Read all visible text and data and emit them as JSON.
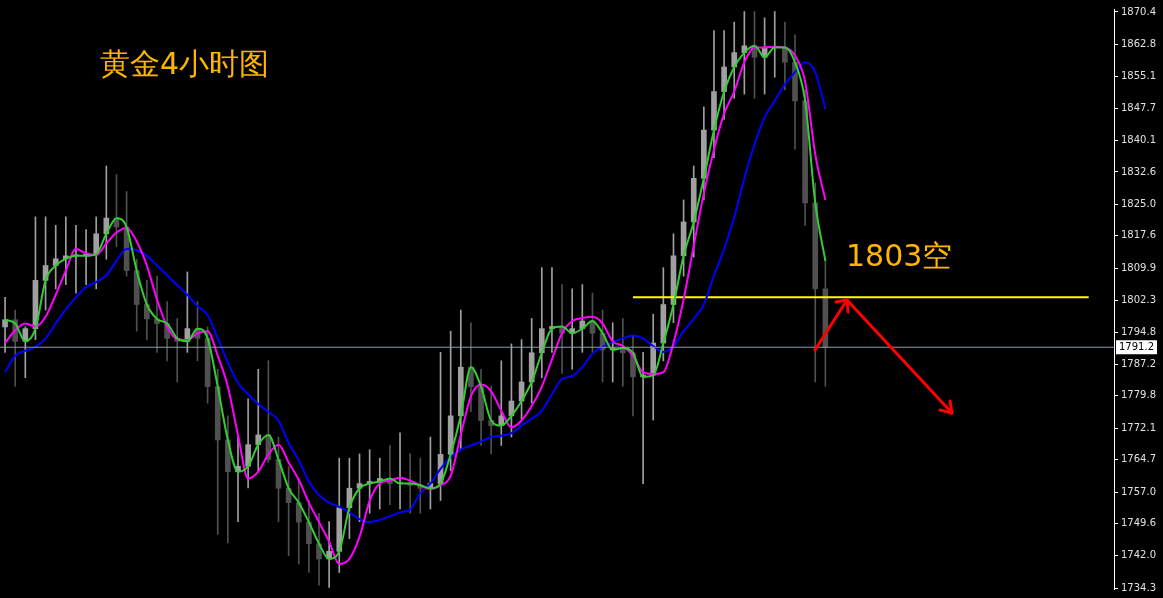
{
  "chart_data": {
    "type": "candlestick",
    "title": "黄金4小时图",
    "colors": [
      "#a0a0a0",
      "#505050",
      "#a0a0a0",
      "#a0a0a0",
      "#a0a0a0",
      "#a0a0a0",
      "#a0a0a0",
      "#a0a0a0",
      "#a0a0a0",
      "#a0a0a0",
      "#a0a0a0",
      "#505050",
      "#505050",
      "#505050",
      "#505050",
      "#505050",
      "#505050",
      "#505050",
      "#a0a0a0",
      "#505050",
      "#505050",
      "#505050",
      "#505050",
      "#a0a0a0",
      "#a0a0a0",
      "#a0a0a0",
      "#505050",
      "#505050",
      "#505050",
      "#505050",
      "#505050",
      "#505050",
      "#a0a0a0",
      "#a0a0a0",
      "#a0a0a0",
      "#a0a0a0",
      "#a0a0a0",
      "#a0a0a0",
      "#505050",
      "#a0a0a0",
      "#505050",
      "#505050",
      "#a0a0a0",
      "#a0a0a0",
      "#a0a0a0",
      "#a0a0a0",
      "#505050",
      "#505050",
      "#505050",
      "#a0a0a0",
      "#a0a0a0",
      "#a0a0a0",
      "#a0a0a0",
      "#a0a0a0",
      "#a0a0a0",
      "#505050",
      "#a0a0a0",
      "#a0a0a0",
      "#505050",
      "#505050",
      "#a0a0a0",
      "#505050",
      "#505050",
      "#a0a0a0",
      "#a0a0a0",
      "#a0a0a0",
      "#a0a0a0",
      "#a0a0a0",
      "#a0a0a0",
      "#a0a0a0",
      "#a0a0a0",
      "#a0a0a0",
      "#a0a0a0",
      "#a0a0a0",
      "#505050",
      "#a0a0a0",
      "#a0a0a0",
      "#505050",
      "#505050",
      "#505050",
      "#505050",
      "#505050",
      null,
      null,
      null,
      null,
      null,
      null,
      null,
      null,
      null,
      null,
      null,
      null,
      null,
      null,
      null,
      null,
      null,
      null,
      null,
      null,
      null,
      null,
      null,
      null,
      null,
      null,
      null,
      null
    ],
    "categories": [
      null,
      null,
      null,
      null,
      null,
      null,
      null,
      null,
      null,
      null,
      null,
      null,
      null,
      null,
      null,
      null,
      null,
      null,
      null,
      null,
      null,
      null,
      null,
      null,
      null,
      null,
      null,
      null,
      null,
      null,
      null,
      null,
      null,
      null,
      null,
      null,
      null,
      null,
      null,
      null,
      null,
      null,
      null,
      null,
      null,
      null,
      null,
      null,
      null,
      null,
      null,
      null,
      null,
      null,
      null,
      null,
      null,
      null,
      null,
      null,
      null,
      null,
      null,
      null,
      null,
      null,
      null,
      null,
      null,
      null,
      null,
      null,
      null,
      null,
      null,
      null,
      null,
      null,
      null,
      null,
      null,
      null,
      null,
      null,
      null,
      null,
      null,
      null,
      null,
      null,
      null,
      null,
      null,
      null,
      null,
      null,
      null,
      null,
      null,
      null,
      null,
      null,
      null,
      null,
      null,
      null,
      null,
      null,
      null,
      null
    ],
    "ohlc": [
      [
        1796,
        1803,
        1790,
        1797.7
      ],
      [
        1797.7,
        1800,
        1782,
        1792.6
      ],
      [
        1792.6,
        1796,
        1784,
        1795.6
      ],
      [
        1795.6,
        1822,
        1793,
        1807
      ],
      [
        1807,
        1822,
        1800,
        1810.5
      ],
      [
        1810.5,
        1820,
        1805,
        1812.1
      ],
      [
        1812.1,
        1822,
        1806,
        1812.8
      ],
      [
        1812.8,
        1820,
        1804,
        1812.8
      ],
      [
        1812.8,
        1819,
        1806,
        1813.2
      ],
      [
        1813.2,
        1822,
        1805,
        1818
      ],
      [
        1818,
        1834,
        1812,
        1821.7
      ],
      [
        1821.7,
        1832,
        1815,
        1819.6
      ],
      [
        1819.6,
        1828,
        1808,
        1809.3
      ],
      [
        1809.3,
        1812,
        1795,
        1801.3
      ],
      [
        1801.3,
        1807,
        1793,
        1797.9
      ],
      [
        1797.9,
        1808,
        1790,
        1796.8
      ],
      [
        1796.8,
        1802,
        1788,
        1793.3
      ],
      [
        1793.3,
        1798,
        1783,
        1792.6
      ],
      [
        1792.6,
        1809,
        1790,
        1795.6
      ],
      [
        1795.6,
        1802,
        1788,
        1793.3
      ],
      [
        1793.3,
        1796,
        1778,
        1781.9
      ],
      [
        1781.9,
        1786,
        1747,
        1769.3
      ],
      [
        1769.3,
        1775,
        1745,
        1761.8
      ],
      [
        1761.8,
        1770,
        1750,
        1763.1
      ],
      [
        1763.1,
        1779,
        1758,
        1768.2
      ],
      [
        1768.2,
        1786,
        1762,
        1770.5
      ],
      [
        1770.5,
        1788,
        1764,
        1764.7
      ],
      [
        1764.7,
        1770,
        1750,
        1757.9
      ],
      [
        1757.9,
        1763,
        1742,
        1754.5
      ],
      [
        1754.5,
        1760,
        1740,
        1749.9
      ],
      [
        1749.9,
        1755,
        1738,
        1744.8
      ],
      [
        1744.8,
        1752,
        1735,
        1741.2
      ],
      [
        1741.2,
        1750,
        1734.5,
        1743
      ],
      [
        1743,
        1765,
        1738,
        1753.3
      ],
      [
        1753.3,
        1765,
        1746,
        1757.9
      ],
      [
        1757.9,
        1766,
        1750,
        1759
      ],
      [
        1759,
        1767,
        1752,
        1759.5
      ],
      [
        1759.5,
        1765,
        1753,
        1760.2
      ],
      [
        1760.2,
        1768,
        1754,
        1759
      ],
      [
        1759,
        1771,
        1753,
        1759
      ],
      [
        1759,
        1766,
        1752,
        1758.6
      ],
      [
        1758.6,
        1765,
        1752,
        1757.9
      ],
      [
        1757.9,
        1770,
        1753,
        1759
      ],
      [
        1759,
        1790,
        1755,
        1765.9
      ],
      [
        1765.9,
        1795,
        1762,
        1775
      ],
      [
        1775,
        1800,
        1767,
        1786.5
      ],
      [
        1786.5,
        1797,
        1776,
        1781.9
      ],
      [
        1781.9,
        1786,
        1768,
        1773.9
      ],
      [
        1773.9,
        1782,
        1766,
        1772.7
      ],
      [
        1772.7,
        1788,
        1768,
        1775
      ],
      [
        1775,
        1792,
        1770,
        1778.5
      ],
      [
        1778.5,
        1793,
        1774,
        1783
      ],
      [
        1783,
        1798,
        1778,
        1789.9
      ],
      [
        1789.9,
        1810,
        1784,
        1795.6
      ],
      [
        1795.6,
        1810,
        1790,
        1796.1
      ],
      [
        1796.1,
        1806,
        1785,
        1794.5
      ],
      [
        1794.5,
        1805,
        1786,
        1795.6
      ],
      [
        1795.6,
        1806,
        1790,
        1797.4
      ],
      [
        1797.4,
        1804,
        1790,
        1794.5
      ],
      [
        1794.5,
        1800,
        1783,
        1790.6
      ],
      [
        1790.6,
        1797,
        1783,
        1791
      ],
      [
        1791,
        1798,
        1782,
        1789.9
      ],
      [
        1789.9,
        1794,
        1775,
        1784.2
      ],
      [
        1784.2,
        1790,
        1759,
        1784.6
      ],
      [
        1784.6,
        1799,
        1774,
        1792.2
      ],
      [
        1792.2,
        1810,
        1788,
        1801.3
      ],
      [
        1801.3,
        1818,
        1797,
        1812.8
      ],
      [
        1812.8,
        1826,
        1808,
        1820.8
      ],
      [
        1820.8,
        1834,
        1812.5,
        1831.1
      ],
      [
        1831.1,
        1848,
        1826,
        1842.5
      ],
      [
        1842.5,
        1866,
        1836,
        1851.6
      ],
      [
        1851.6,
        1866,
        1845,
        1857.4
      ],
      [
        1857.4,
        1868,
        1850,
        1860.8
      ],
      [
        1860.8,
        1870.5,
        1851,
        1862.4
      ],
      [
        1862.4,
        1870.5,
        1850,
        1859.7
      ],
      [
        1859.7,
        1869,
        1851,
        1862
      ],
      [
        1862,
        1870.5,
        1855,
        1862
      ],
      [
        1862,
        1868,
        1852,
        1858.5
      ],
      [
        1858.5,
        1865,
        1838,
        1849.4
      ],
      [
        1849.4,
        1852,
        1820,
        1825.3
      ],
      [
        1825.3,
        1830,
        1783,
        1805
      ],
      [
        1805,
        1812,
        1782,
        1791.2
      ],
      null,
      null,
      null,
      null,
      null,
      null,
      null,
      null,
      null,
      null,
      null,
      null,
      null,
      null,
      null,
      null,
      null,
      null,
      null,
      null,
      null,
      null,
      null,
      null,
      null,
      null,
      null,
      null
    ],
    "series": [
      {
        "type": "line",
        "color": "#33cc33",
        "values": [
          1797.7,
          1796.8,
          1792.6,
          1795.6,
          1807.0,
          1810.5,
          1812.1,
          1812.8,
          1812.8,
          1813.2,
          1818.0,
          1821.7,
          1819.6,
          1809.3,
          1801.3,
          1797.9,
          1796.8,
          1793.3,
          1792.6,
          1795.6,
          1793.3,
          1781.9,
          1769.3,
          1761.8,
          1763.1,
          1768.2,
          1770.5,
          1764.7,
          1757.9,
          1754.5,
          1749.9,
          1744.8,
          1741.2,
          1743.0,
          1753.3,
          1757.9,
          1759.0,
          1759.5,
          1760.2,
          1759.0,
          1759.0,
          1758.6,
          1757.9,
          1759.0,
          1765.9,
          1775.0,
          1786.5,
          1781.9,
          1773.9,
          1772.7,
          1775.0,
          1778.5,
          1783.0,
          1789.9,
          1795.6,
          1796.1,
          1794.5,
          1795.6,
          1797.4,
          1794.5,
          1790.6,
          1791.0,
          1789.9,
          1784.2,
          1784.6,
          1792.2,
          1801.3,
          1812.8,
          1820.8,
          1831.1,
          1842.5,
          1851.6,
          1857.4,
          1860.8,
          1862.4,
          1859.7,
          1862.0,
          1862.0,
          1858.5,
          1849.4,
          1825.3,
          1811.6,
          null,
          null,
          null,
          null,
          null,
          null,
          null,
          null,
          null,
          null,
          null,
          null,
          null,
          null,
          null,
          null,
          null,
          null,
          null,
          null,
          null,
          null,
          null,
          null,
          null,
          null,
          null,
          null
        ]
      },
      {
        "type": "line",
        "color": "#ff00ff",
        "values": [
          1792.2,
          1795.2,
          1796.8,
          1796.1,
          1798.4,
          1803.6,
          1809.3,
          1814.4,
          1813.4,
          1813.0,
          1815.7,
          1818.3,
          1819.4,
          1816.2,
          1810.5,
          1802.5,
          1796.1,
          1793.1,
          1792.9,
          1794.5,
          1795.0,
          1789.2,
          1781.9,
          1770.5,
          1760.2,
          1761.8,
          1765.9,
          1768.2,
          1764.0,
          1759.9,
          1754.5,
          1749.9,
          1745.3,
          1740.0,
          1741.2,
          1746.4,
          1754.9,
          1759.0,
          1759.7,
          1760.4,
          1759.7,
          1758.6,
          1757.7,
          1758.6,
          1760.8,
          1770.5,
          1779.6,
          1782.4,
          1780.8,
          1776.2,
          1772.3,
          1773.9,
          1777.3,
          1781.9,
          1788.3,
          1794.5,
          1797.4,
          1798.1,
          1798.4,
          1796.8,
          1792.6,
          1791.5,
          1789.2,
          1785.3,
          1784.9,
          1785.3,
          1792.2,
          1802.5,
          1815.1,
          1827.6,
          1837.9,
          1846.4,
          1851.6,
          1858.5,
          1862.0,
          1862.0,
          1862.2,
          1862.0,
          1860.1,
          1853.9,
          1836.8,
          1826.0,
          null,
          null,
          null,
          null,
          null,
          null,
          null,
          null,
          null,
          null,
          null,
          null,
          null,
          null,
          null,
          null,
          null,
          null,
          null,
          null,
          null,
          null,
          null,
          null,
          null,
          null,
          null,
          null
        ]
      },
      {
        "type": "line",
        "color": "#0000ff",
        "values": [
          1785.3,
          1789.2,
          1790.4,
          1791.3,
          1793.3,
          1796.8,
          1800.2,
          1803.0,
          1805.4,
          1806.6,
          1808.2,
          1811.6,
          1814.4,
          1814.1,
          1812.8,
          1810.5,
          1808.2,
          1805.9,
          1803.6,
          1800.9,
          1798.8,
          1793.3,
          1787.6,
          1782.8,
          1780.1,
          1777.8,
          1775.9,
          1773.9,
          1768.6,
          1764.5,
          1759.5,
          1756.3,
          1754.5,
          1753.5,
          1752.2,
          1750.6,
          1749.9,
          1750.4,
          1751.3,
          1752.2,
          1752.9,
          1756.7,
          1759.0,
          1762.5,
          1765.2,
          1767.0,
          1768.0,
          1768.9,
          1770.0,
          1770.3,
          1770.9,
          1772.7,
          1774.3,
          1776.2,
          1780.1,
          1783.7,
          1784.4,
          1786.5,
          1789.7,
          1791.3,
          1792.4,
          1793.3,
          1794.0,
          1793.3,
          1791.5,
          1790.1,
          1791.5,
          1795.0,
          1797.9,
          1801.3,
          1808.2,
          1814.4,
          1821.9,
          1831.1,
          1839.1,
          1845.5,
          1849.4,
          1853.3,
          1856.2,
          1858.5,
          1856.2,
          1847.5,
          null,
          null,
          null,
          null,
          null,
          null,
          null,
          null,
          null,
          null,
          null,
          null,
          null,
          null,
          null,
          null,
          null,
          null,
          null,
          null,
          null,
          null,
          null,
          null,
          null,
          null,
          null,
          null
        ]
      },
      {
        "type": "line",
        "color": "#ffff00",
        "values": [
          null,
          null,
          null,
          null,
          null,
          null,
          null,
          null,
          null,
          null,
          null,
          null,
          null,
          null,
          null,
          null,
          null,
          null,
          null,
          null,
          null,
          null,
          null,
          null,
          null,
          null,
          null,
          null,
          null,
          null,
          null,
          null,
          null,
          null,
          null,
          null,
          null,
          null,
          null,
          null,
          null,
          null,
          null,
          null,
          null,
          null,
          null,
          null,
          null,
          null,
          null,
          null,
          null,
          null,
          null,
          null,
          null,
          null,
          null,
          null,
          null,
          null,
          1803,
          1803,
          1803,
          1803,
          1803,
          1803,
          1803,
          1803,
          1803,
          1803,
          1803,
          1803,
          1803,
          1803,
          1803,
          1803,
          1803,
          1803,
          1803,
          1803,
          1803,
          1803,
          1803,
          1803,
          1803,
          1803,
          1803,
          1803,
          1803,
          1803,
          1803,
          1803,
          1803,
          1803,
          1803,
          1803,
          1803,
          1803,
          1803,
          1803,
          1803,
          1803,
          1803,
          1803,
          1803,
          1803,
          null,
          null
        ]
      }
    ],
    "ylim": [
      1734.1,
      1871.1
    ],
    "yticks": [
      1870.4,
      1862.8,
      1855.1,
      1847.7,
      1840.1,
      1832.6,
      {
        "value": 1825.0,
        "label": "1825.0"
      },
      1817.6,
      1809.9,
      1802.3,
      1794.8,
      1787.2,
      1779.8,
      1772.1,
      1764.7,
      {
        "value": 1757.0,
        "label": "1757.0"
      },
      1749.6,
      {
        "value": 1742.0,
        "label": "1742.0"
      },
      1734.3
    ],
    "ref_lines": [
      {
        "axis": "y",
        "value": 1791.2,
        "label": "1791.2",
        "color": "#8a9aaa"
      }
    ],
    "annotations": [
      "1803空"
    ]
  }
}
